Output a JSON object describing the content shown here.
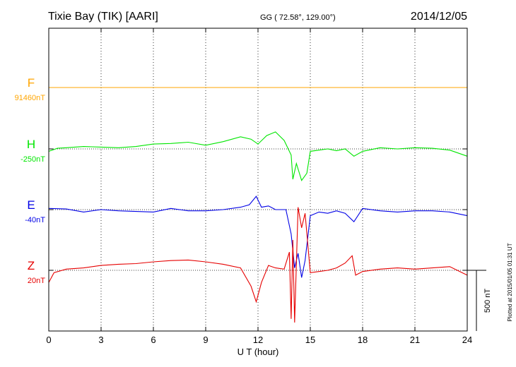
{
  "header": {
    "station": "Tixie Bay (TIK)  [AARI]",
    "coords": "GG ( 72.58°, 129.00°)",
    "date": "2014/12/05"
  },
  "chart_data": {
    "type": "line",
    "xlabel": "U T (hour)",
    "xlim": [
      0,
      24
    ],
    "xticks": [
      0,
      3,
      6,
      9,
      12,
      15,
      18,
      21,
      24
    ],
    "scale_bar": {
      "label": "500 nT",
      "value_nT": 500
    },
    "plot_note": "Plotted at 2015/01/05 01:31  UT",
    "grid": true,
    "series": [
      {
        "name": "F",
        "baseline_label": "91460nT",
        "color": "#ffa500",
        "points": [
          [
            0,
            0
          ],
          [
            24,
            0
          ]
        ]
      },
      {
        "name": "H",
        "baseline_label": "-250nT",
        "color": "#00e600",
        "points": [
          [
            0,
            -20
          ],
          [
            0.5,
            5
          ],
          [
            1,
            10
          ],
          [
            2,
            20
          ],
          [
            3,
            15
          ],
          [
            4,
            10
          ],
          [
            5,
            20
          ],
          [
            6,
            40
          ],
          [
            7,
            45
          ],
          [
            8,
            55
          ],
          [
            9,
            30
          ],
          [
            10,
            60
          ],
          [
            11,
            100
          ],
          [
            11.6,
            80
          ],
          [
            12,
            40
          ],
          [
            12.5,
            110
          ],
          [
            13,
            140
          ],
          [
            13.5,
            70
          ],
          [
            13.9,
            -50
          ],
          [
            14.0,
            -250
          ],
          [
            14.2,
            -120
          ],
          [
            14.5,
            -260
          ],
          [
            14.8,
            -200
          ],
          [
            15,
            -20
          ],
          [
            15.5,
            -10
          ],
          [
            16,
            0
          ],
          [
            16.5,
            -15
          ],
          [
            17,
            0
          ],
          [
            17.5,
            -60
          ],
          [
            18,
            -20
          ],
          [
            19,
            10
          ],
          [
            20,
            0
          ],
          [
            21,
            10
          ],
          [
            22,
            5
          ],
          [
            23,
            -10
          ],
          [
            24,
            -60
          ]
        ]
      },
      {
        "name": "E",
        "baseline_label": "-40nT",
        "color": "#0000e6",
        "points": [
          [
            0,
            10
          ],
          [
            1,
            5
          ],
          [
            2,
            -20
          ],
          [
            3,
            0
          ],
          [
            4,
            -10
          ],
          [
            5,
            -15
          ],
          [
            6,
            -20
          ],
          [
            7,
            10
          ],
          [
            8,
            -10
          ],
          [
            9,
            -10
          ],
          [
            10,
            0
          ],
          [
            11,
            20
          ],
          [
            11.5,
            40
          ],
          [
            11.9,
            110
          ],
          [
            12.2,
            20
          ],
          [
            12.6,
            30
          ],
          [
            13,
            0
          ],
          [
            13.6,
            0
          ],
          [
            13.9,
            -200
          ],
          [
            14.1,
            -480
          ],
          [
            14.3,
            -360
          ],
          [
            14.5,
            -560
          ],
          [
            14.7,
            -420
          ],
          [
            15,
            -50
          ],
          [
            15.5,
            -20
          ],
          [
            16,
            -30
          ],
          [
            16.5,
            -10
          ],
          [
            17,
            -30
          ],
          [
            17.5,
            -100
          ],
          [
            18,
            10
          ],
          [
            19,
            -10
          ],
          [
            20,
            -20
          ],
          [
            21,
            -10
          ],
          [
            22,
            -10
          ],
          [
            23,
            -20
          ],
          [
            24,
            -50
          ]
        ]
      },
      {
        "name": "Z",
        "baseline_label": "20nT",
        "color": "#e60000",
        "points": [
          [
            0,
            -100
          ],
          [
            0.3,
            -20
          ],
          [
            1,
            10
          ],
          [
            2,
            20
          ],
          [
            3,
            40
          ],
          [
            4,
            50
          ],
          [
            5,
            55
          ],
          [
            6,
            70
          ],
          [
            7,
            80
          ],
          [
            8,
            85
          ],
          [
            9,
            70
          ],
          [
            10,
            50
          ],
          [
            11,
            20
          ],
          [
            11.6,
            -130
          ],
          [
            11.9,
            -260
          ],
          [
            12.2,
            -100
          ],
          [
            12.6,
            40
          ],
          [
            13,
            20
          ],
          [
            13.5,
            10
          ],
          [
            13.8,
            150
          ],
          [
            13.9,
            -400
          ],
          [
            14.0,
            250
          ],
          [
            14.1,
            -430
          ],
          [
            14.3,
            520
          ],
          [
            14.5,
            350
          ],
          [
            14.7,
            470
          ],
          [
            15,
            -20
          ],
          [
            15.5,
            -10
          ],
          [
            16,
            0
          ],
          [
            16.5,
            20
          ],
          [
            17,
            60
          ],
          [
            17.4,
            120
          ],
          [
            17.6,
            -40
          ],
          [
            18,
            -10
          ],
          [
            19,
            10
          ],
          [
            20,
            20
          ],
          [
            21,
            10
          ],
          [
            22,
            20
          ],
          [
            23,
            30
          ],
          [
            24,
            -40
          ]
        ]
      }
    ]
  }
}
